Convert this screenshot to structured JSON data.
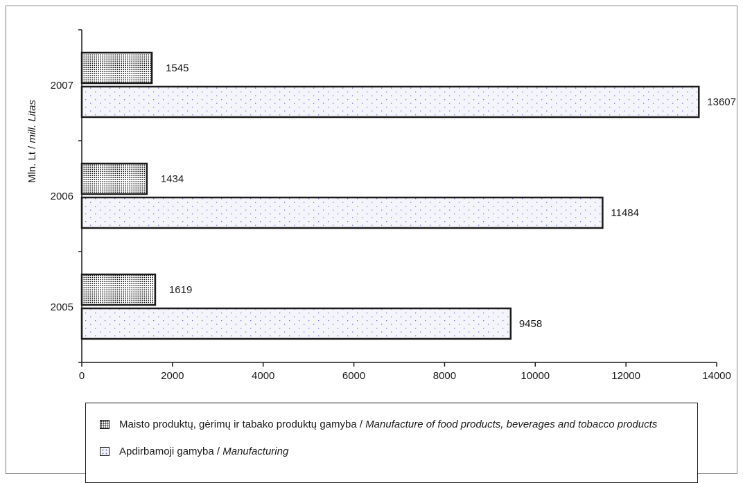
{
  "chart_data": {
    "type": "bar",
    "orientation": "horizontal",
    "categories": [
      "2005",
      "2006",
      "2007"
    ],
    "series": [
      {
        "name": "Maisto produktų, gėrimų ir tabako produktų gamyba / Manufacture of food products, beverages and tobacco products",
        "name_main": "Maisto produktų, gėrimų ir tabako produktų gamyba / ",
        "name_italic": "Manufacture of food products, beverages and tobacco products",
        "values": [
          1619,
          1434,
          1545
        ]
      },
      {
        "name": "Apdirbamoji gamyba / Manufacturing",
        "name_main": "Apdirbamoji gamyba / ",
        "name_italic": "Manufacturing",
        "values": [
          9458,
          11484,
          13607
        ]
      }
    ],
    "ylabel": "Mln. Lt / mill. Litas",
    "ylabel_main": "Mln. Lt / ",
    "ylabel_italic": "mill. Litas",
    "xlim": [
      0,
      14000
    ],
    "x_ticks": [
      0,
      2000,
      4000,
      6000,
      8000,
      10000,
      12000,
      14000
    ],
    "grid": false,
    "legend_position": "bottom"
  }
}
